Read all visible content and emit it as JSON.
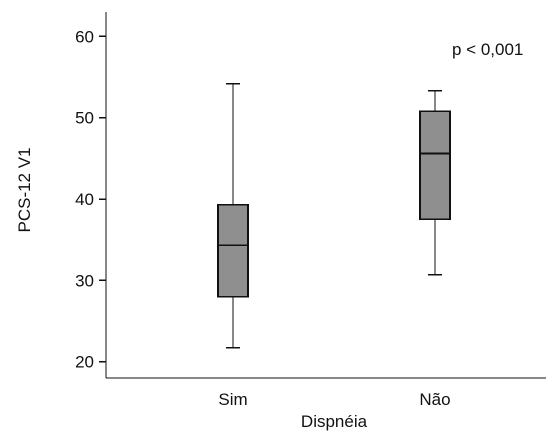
{
  "chart_data": {
    "type": "boxplot",
    "title": "",
    "annotation": "p < 0,001",
    "xlabel": "Dispnéia",
    "ylabel": "PCS-12 V1",
    "ylim": [
      18,
      63
    ],
    "yticks": [
      20,
      30,
      40,
      50,
      60
    ],
    "categories": [
      "Sim",
      "Não"
    ],
    "boxes": [
      {
        "category": "Sim",
        "min": 21.7,
        "q1": 28.0,
        "median": 34.3,
        "q3": 39.3,
        "max": 54.2
      },
      {
        "category": "Não",
        "min": 30.7,
        "q1": 37.5,
        "median": 45.6,
        "q3": 50.8,
        "max": 53.3
      }
    ],
    "grid": false,
    "legend": "none",
    "colors": {
      "box_fill": "#8f8f8f",
      "stroke": "#111111",
      "background": "#ffffff"
    }
  }
}
